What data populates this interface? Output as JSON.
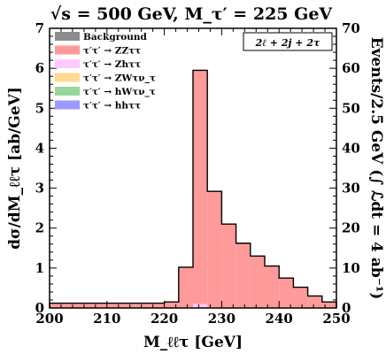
{
  "chart_data": {
    "type": "bar",
    "title": "√s = 500 GeV, M_τ′ = 225 GeV",
    "xlabel": "M_ℓℓτ [GeV]",
    "ylabel_left": "dσ/dM_ℓℓτ [ab/GeV]",
    "ylabel_right": "Events/2.5 GeV (∫ ℒdt = 4 ab⁻¹)",
    "channel_label": "2ℓ + 2j + 2τ",
    "xlim": [
      200,
      250
    ],
    "ylim_left": [
      0,
      7
    ],
    "ylim_right": [
      0,
      70
    ],
    "x_ticks": [
      "200",
      "210",
      "220",
      "230",
      "240",
      "250"
    ],
    "y_ticks_left": [
      "0",
      "1",
      "2",
      "3",
      "4",
      "5",
      "6",
      "7"
    ],
    "y_ticks_right": [
      "0",
      "10",
      "20",
      "30",
      "40",
      "50",
      "60",
      "70"
    ],
    "bin_width": 2.5,
    "bin_edges": [
      200,
      202.5,
      205,
      207.5,
      210,
      212.5,
      215,
      217.5,
      220,
      222.5,
      225,
      227.5,
      230,
      232.5,
      235,
      237.5,
      240,
      242.5,
      245,
      247.5,
      250
    ],
    "stack_order": [
      "Background",
      "hhττ",
      "hWτν",
      "ZWτν",
      "Zhττ",
      "ZZττ"
    ],
    "series": [
      {
        "name": "Background",
        "legend": "Background",
        "color": "#8c8c8c",
        "values": [
          0,
          0,
          0,
          0,
          0,
          0,
          0,
          0,
          0,
          0,
          0,
          0,
          0,
          0,
          0,
          0,
          0,
          0,
          0,
          0
        ]
      },
      {
        "name": "ZZττ",
        "legend": "τ′τ′ → ZZττ",
        "color": "#ff9a9a",
        "values": [
          0.12,
          0.12,
          0.12,
          0.12,
          0.12,
          0.12,
          0.12,
          0.12,
          0.15,
          1.02,
          5.85,
          2.92,
          2.1,
          1.62,
          1.3,
          1.05,
          0.75,
          0.52,
          0.3,
          0.15
        ]
      },
      {
        "name": "Zhττ",
        "legend": "τ′τ′ → Zhττ",
        "color": "#ffc8ff",
        "values": [
          0,
          0,
          0,
          0,
          0,
          0,
          0,
          0,
          0,
          0,
          0.1,
          0,
          0,
          0,
          0,
          0,
          0,
          0,
          0,
          0
        ]
      },
      {
        "name": "ZWτν",
        "legend": "τ′τ′ → ZWτν_τ",
        "color": "#ffd98f",
        "values": [
          0,
          0,
          0,
          0,
          0,
          0,
          0,
          0,
          0,
          0,
          0,
          0,
          0,
          0,
          0,
          0,
          0,
          0,
          0,
          0
        ]
      },
      {
        "name": "hWτν",
        "legend": "τ′τ′ → hWτν_τ",
        "color": "#99d699",
        "values": [
          0,
          0,
          0,
          0,
          0,
          0,
          0,
          0,
          0,
          0,
          0,
          0,
          0,
          0,
          0,
          0,
          0,
          0,
          0,
          0
        ]
      },
      {
        "name": "hhττ",
        "legend": "τ′τ′ → hhττ",
        "color": "#9a9aff",
        "values": [
          0,
          0,
          0,
          0,
          0,
          0,
          0,
          0,
          0,
          0,
          0,
          0,
          0,
          0,
          0,
          0,
          0,
          0,
          0,
          0
        ]
      }
    ],
    "legend_placement": "top-left",
    "grid": false
  }
}
